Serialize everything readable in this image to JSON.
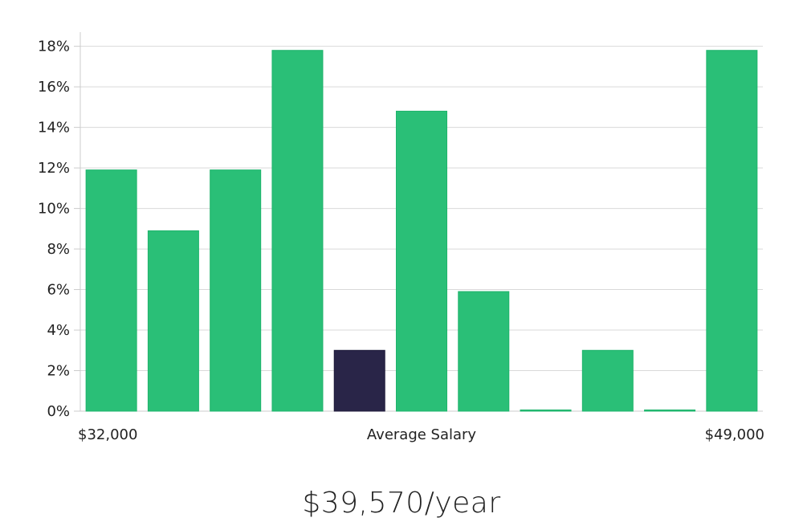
{
  "chart_data": {
    "type": "bar",
    "categories": [
      "",
      "",
      "",
      "",
      "",
      "",
      "",
      "",
      "",
      "",
      ""
    ],
    "values": [
      11.9,
      8.9,
      11.9,
      17.8,
      3.0,
      14.8,
      5.9,
      0,
      3.0,
      0,
      17.8
    ],
    "highlight_index": 4,
    "ylim": [
      0,
      18.7
    ],
    "yticks": [
      0,
      2,
      4,
      6,
      8,
      10,
      12,
      14,
      16,
      18
    ],
    "ytick_labels": [
      "0%",
      "2%",
      "4%",
      "6%",
      "8%",
      "10%",
      "12%",
      "14%",
      "16%",
      "18%"
    ],
    "x_start_label": "$32,000",
    "x_center_label": "Average Salary",
    "x_end_label": "$49,000",
    "grid": true,
    "colors": {
      "bar": "#2abf77",
      "bar_edge": "#1fb46c",
      "highlight": "#292548",
      "grid": "#d9d9d9",
      "axis": "#cccccc"
    }
  },
  "summary": {
    "salary": "$39,570/year"
  }
}
